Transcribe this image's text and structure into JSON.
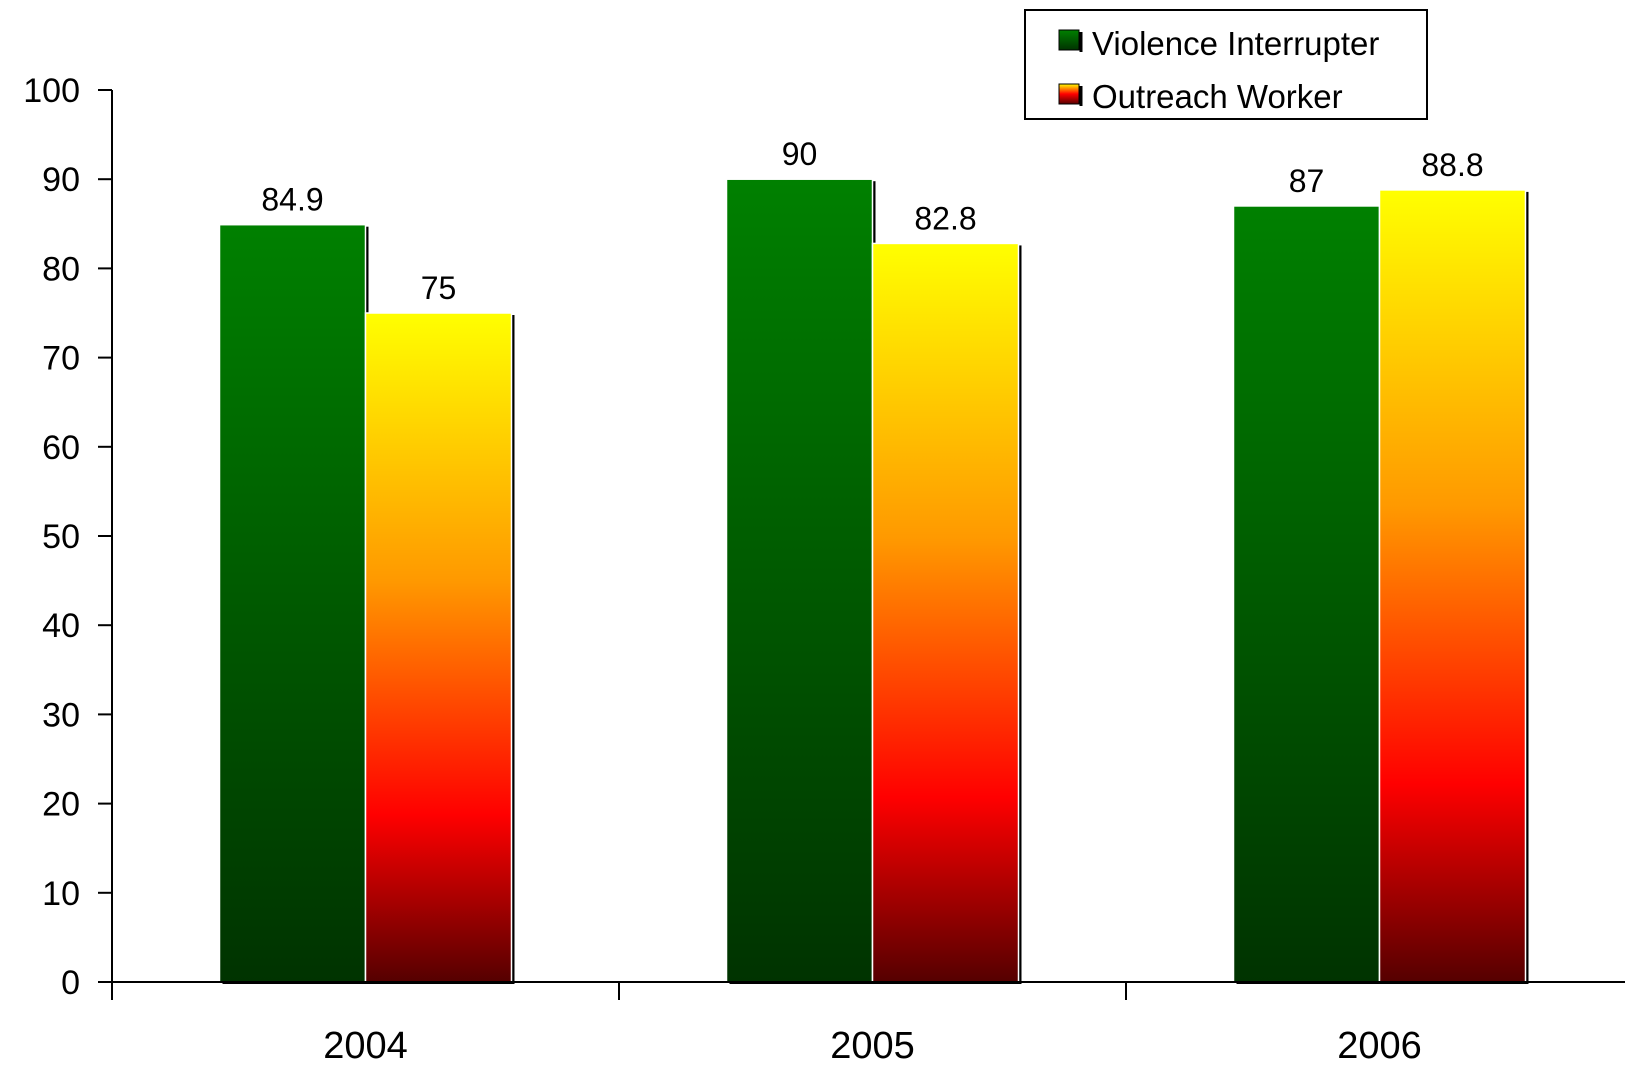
{
  "chart_data": {
    "type": "bar",
    "categories": [
      "2004",
      "2005",
      "2006"
    ],
    "series": [
      {
        "name": "Violence Interrupter",
        "values": [
          84.9,
          90,
          87
        ],
        "data_labels": [
          "84.9",
          "90",
          "87"
        ],
        "color_top": "#008000",
        "color_bottom": "#003300"
      },
      {
        "name": "Outreach Worker",
        "values": [
          75,
          82.8,
          88.8
        ],
        "data_labels": [
          "75",
          "82.8",
          "88.8"
        ],
        "color_top": "#ffff00",
        "color_mid1": "#ff9900",
        "color_mid2": "#ff0000",
        "color_bottom": "#550000"
      }
    ],
    "ylim": [
      0,
      100
    ],
    "yticks": [
      "0",
      "10",
      "20",
      "30",
      "40",
      "50",
      "60",
      "70",
      "80",
      "90",
      "100"
    ],
    "legend_position": "top-right",
    "grid": false
  }
}
